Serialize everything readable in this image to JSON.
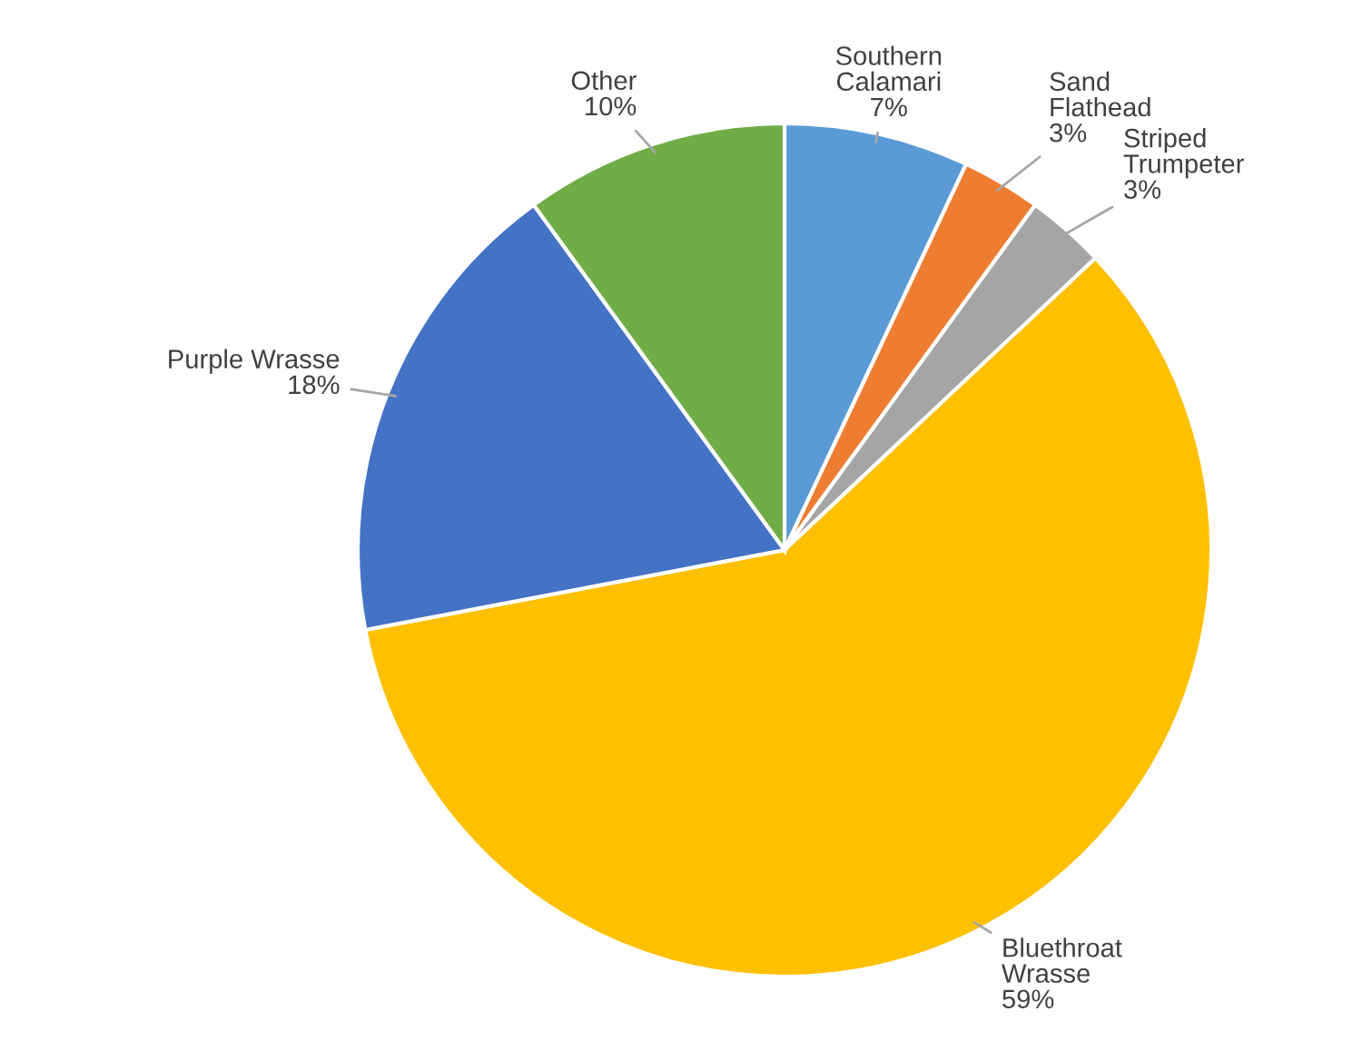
{
  "chart_data": {
    "type": "pie",
    "categories": [
      "Southern Calamari",
      "Sand Flathead",
      "Striped Trumpeter",
      "Bluethroat Wrasse",
      "Purple Wrasse",
      "Other"
    ],
    "values": [
      7,
      3,
      3,
      59,
      18,
      10
    ],
    "value_labels": [
      "7%",
      "3%",
      "3%",
      "59%",
      "18%",
      "10%"
    ],
    "colors": [
      "#5b9bd5",
      "#ed7d31",
      "#a5a5a5",
      "#ffc000",
      "#4472c4",
      "#70ad47"
    ],
    "legend": false
  }
}
